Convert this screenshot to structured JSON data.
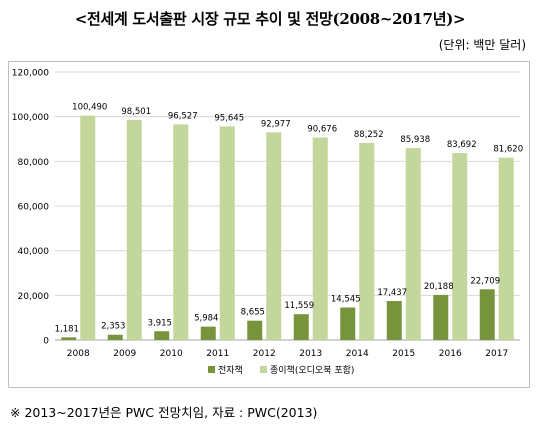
{
  "header": {
    "title": "<전세계 도서출판 시장 규모 추이 및 전망(2008~2017년)>",
    "unit": "(단위: 백만 달러)"
  },
  "footnote": "※ 2013~2017년은 PWC 전망치임, 자료 : PWC(2013)",
  "colors": {
    "ebook": "#77933c",
    "paper": "#c3d69b",
    "grid": "#d9d9d9"
  },
  "chart_data": {
    "type": "bar",
    "categories": [
      "2008",
      "2009",
      "2010",
      "2011",
      "2012",
      "2013",
      "2014",
      "2015",
      "2016",
      "2017"
    ],
    "series": [
      {
        "name": "전자책",
        "values": [
          1181,
          2353,
          3915,
          5984,
          8655,
          11559,
          14545,
          17437,
          20188,
          22709
        ],
        "labels": [
          "1,181",
          "2,353",
          "3,915",
          "5,984",
          "8,655",
          "11,559",
          "14,545",
          "17,437",
          "20,188",
          "22,709"
        ]
      },
      {
        "name": "종이책(오디오북 포함)",
        "values": [
          100490,
          98501,
          96527,
          95645,
          92977,
          90676,
          88252,
          85938,
          83692,
          81620
        ],
        "labels": [
          "100,490",
          "98,501",
          "96,527",
          "95,645",
          "92,977",
          "90,676",
          "88,252",
          "85,938",
          "83,692",
          "81,620"
        ]
      }
    ],
    "ylim": [
      0,
      120000
    ],
    "yticks": [
      0,
      20000,
      40000,
      60000,
      80000,
      100000,
      120000
    ],
    "ytick_labels": [
      "0",
      "20,000",
      "40,000",
      "60,000",
      "80,000",
      "100,000",
      "120,000"
    ],
    "grid": true,
    "legend_position": "bottom"
  }
}
